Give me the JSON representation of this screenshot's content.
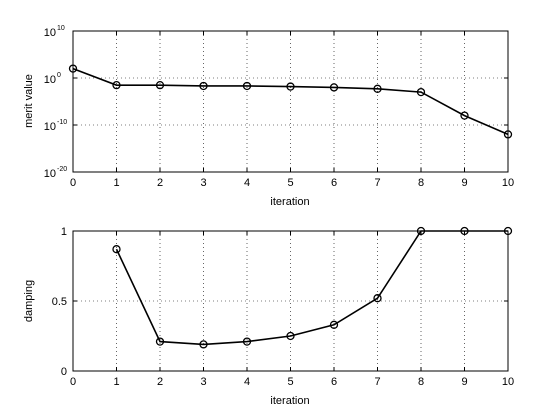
{
  "chart_data": [
    {
      "type": "line",
      "title": "",
      "xlabel": "iteration",
      "ylabel": "merit value",
      "xlim": [
        0,
        10
      ],
      "ylim_log10": [
        -20,
        10
      ],
      "yscale": "log",
      "grid": true,
      "marker": "circle",
      "x_ticks": [
        "0",
        "1",
        "2",
        "3",
        "4",
        "5",
        "6",
        "7",
        "8",
        "9",
        "10"
      ],
      "y_ticks": [
        {
          "base": "10",
          "exp": "10",
          "log10": 10
        },
        {
          "base": "10",
          "exp": "0",
          "log10": 0
        },
        {
          "base": "10",
          "exp": "-10",
          "log10": -10
        },
        {
          "base": "10",
          "exp": "-20",
          "log10": -20
        }
      ],
      "series": [
        {
          "x": [
            0,
            1,
            2,
            3,
            4,
            5,
            6,
            7,
            8,
            9,
            10
          ],
          "y": [
            100,
            0.03,
            0.03,
            0.02,
            0.02,
            0.015,
            0.01,
            0.005,
            0.001,
            1e-08,
            1e-12
          ]
        }
      ]
    },
    {
      "type": "line",
      "title": "",
      "xlabel": "iteration",
      "ylabel": "damping",
      "xlim": [
        0,
        10
      ],
      "ylim": [
        0,
        1
      ],
      "grid": true,
      "marker": "circle",
      "x_ticks": [
        "0",
        "1",
        "2",
        "3",
        "4",
        "5",
        "6",
        "7",
        "8",
        "9",
        "10"
      ],
      "y_ticks": [
        "0",
        "0.5",
        "1"
      ],
      "series": [
        {
          "x": [
            1,
            2,
            3,
            4,
            5,
            6,
            7,
            8,
            9,
            10
          ],
          "y": [
            0.87,
            0.21,
            0.19,
            0.21,
            0.25,
            0.33,
            0.52,
            1.0,
            1.0,
            1.0
          ]
        }
      ]
    }
  ]
}
